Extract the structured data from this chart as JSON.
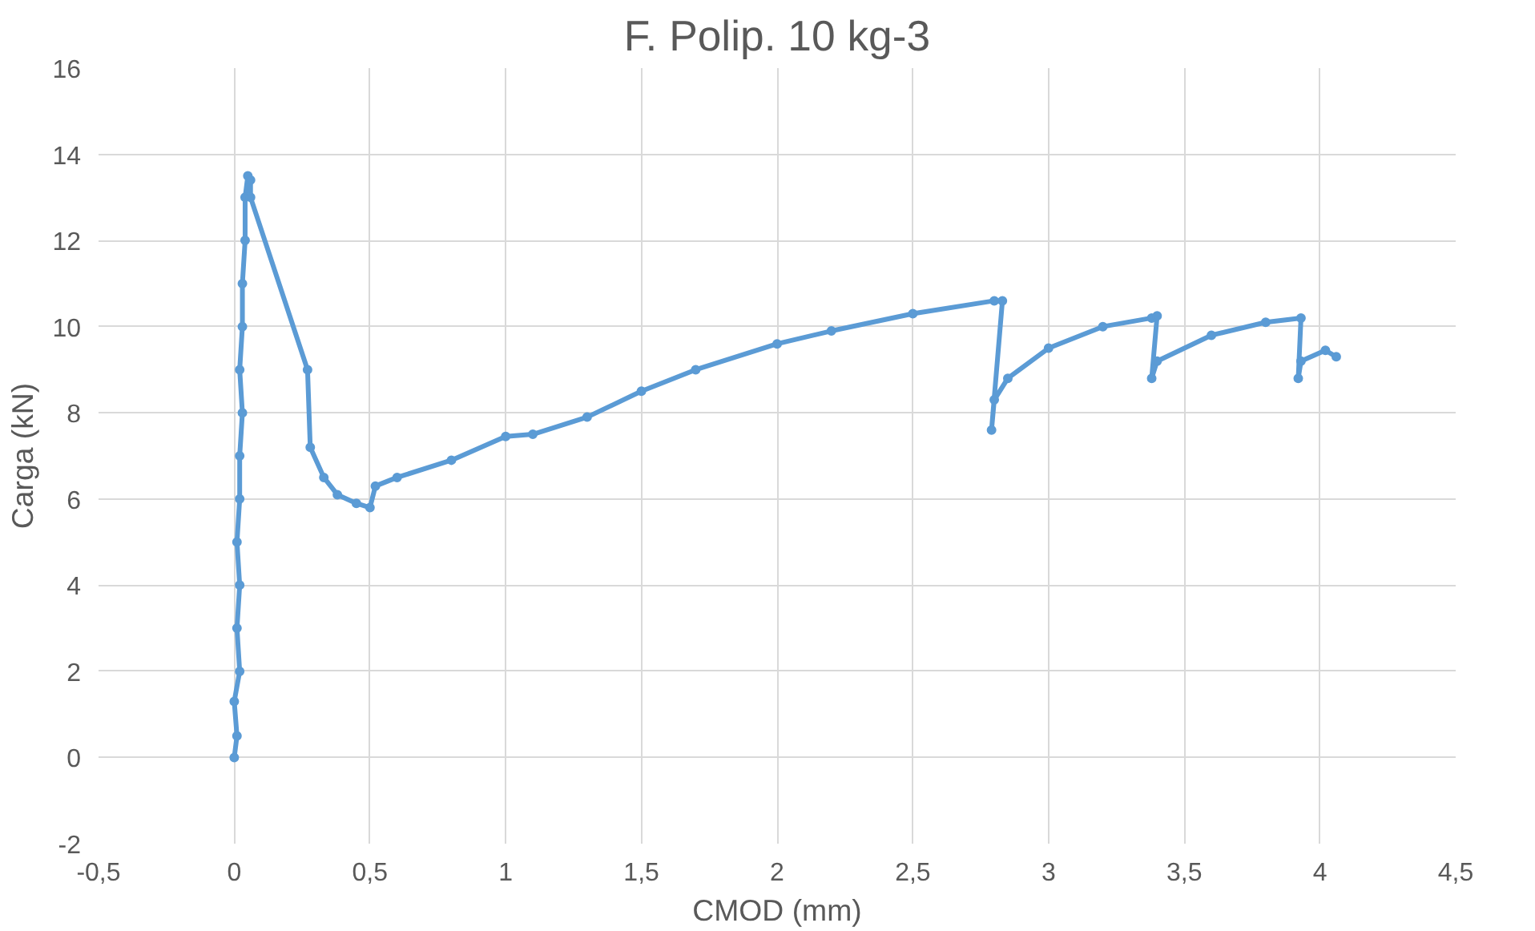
{
  "chart_data": {
    "type": "line",
    "title": "F. Polip. 10 kg-3",
    "xlabel": "CMOD (mm)",
    "ylabel": "Carga (kN)",
    "series": [
      {
        "color": "#5b9bd5",
        "x": [
          0.0,
          0.01,
          0.0,
          0.02,
          0.01,
          0.02,
          0.01,
          0.02,
          0.02,
          0.03,
          0.02,
          0.03,
          0.03,
          0.04,
          0.04,
          0.05,
          0.06,
          0.06,
          0.27,
          0.28,
          0.33,
          0.38,
          0.45,
          0.5,
          0.52,
          0.6,
          0.8,
          1.0,
          1.1,
          1.3,
          1.5,
          1.7,
          2.0,
          2.2,
          2.5,
          2.8,
          2.83,
          2.79,
          2.8,
          2.85,
          3.0,
          3.2,
          3.38,
          3.4,
          3.38,
          3.4,
          3.6,
          3.8,
          3.93,
          3.92,
          3.93,
          4.02,
          4.06
        ],
        "values": [
          0.0,
          0.5,
          1.3,
          2.0,
          3.0,
          4.0,
          5.0,
          6.0,
          7.0,
          8.0,
          9.0,
          10.0,
          11.0,
          12.0,
          13.0,
          13.5,
          13.4,
          13.0,
          9.0,
          7.2,
          6.5,
          6.1,
          5.9,
          5.8,
          6.3,
          6.5,
          6.9,
          7.45,
          7.5,
          7.9,
          8.5,
          9.0,
          9.6,
          9.9,
          10.3,
          10.6,
          10.6,
          7.6,
          8.3,
          8.8,
          9.5,
          10.0,
          10.2,
          10.25,
          8.8,
          9.2,
          9.8,
          10.1,
          10.2,
          8.8,
          9.2,
          9.45,
          9.3
        ]
      }
    ],
    "marker": "circle",
    "line_style": "solid",
    "grid": true,
    "xlim": [
      -0.5,
      4.5
    ],
    "xticks": [
      {
        "value": -0.5,
        "label": "-0,5"
      },
      0,
      {
        "value": 0.5,
        "label": "0,5"
      },
      1,
      {
        "value": 1.5,
        "label": "1,5"
      },
      2,
      {
        "value": 2.5,
        "label": "2,5"
      },
      3,
      {
        "value": 3.5,
        "label": "3,5"
      },
      4,
      {
        "value": 4.5,
        "label": "4,5"
      }
    ],
    "ylim": [
      -2,
      16
    ],
    "yticks": [
      -2,
      0,
      2,
      4,
      6,
      8,
      10,
      12,
      14,
      16
    ]
  }
}
